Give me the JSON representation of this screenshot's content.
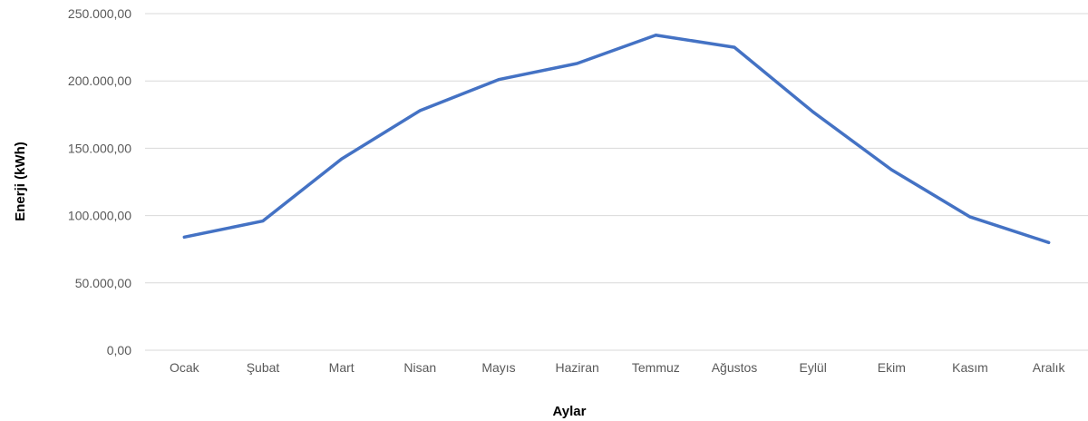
{
  "chart_data": {
    "type": "line",
    "categories": [
      "Ocak",
      "Şubat",
      "Mart",
      "Nisan",
      "Mayıs",
      "Haziran",
      "Temmuz",
      "Ağustos",
      "Eylül",
      "Ekim",
      "Kasım",
      "Aralık"
    ],
    "series": [
      {
        "values": [
          84000,
          96000,
          142000,
          178000,
          201000,
          213000,
          234000,
          225000,
          177000,
          134000,
          99000,
          80000
        ],
        "color": "#4472c4"
      }
    ],
    "y_ticks": [
      0,
      50000,
      100000,
      150000,
      200000,
      250000
    ],
    "y_tick_labels": [
      "0,00",
      "50.000,00",
      "100.000,00",
      "150.000,00",
      "200.000,00",
      "250.000,00"
    ],
    "ylim": [
      0,
      250000
    ],
    "xlabel": "Aylar",
    "ylabel": "Enerji (kWh)",
    "grid": true,
    "legend": "none"
  }
}
